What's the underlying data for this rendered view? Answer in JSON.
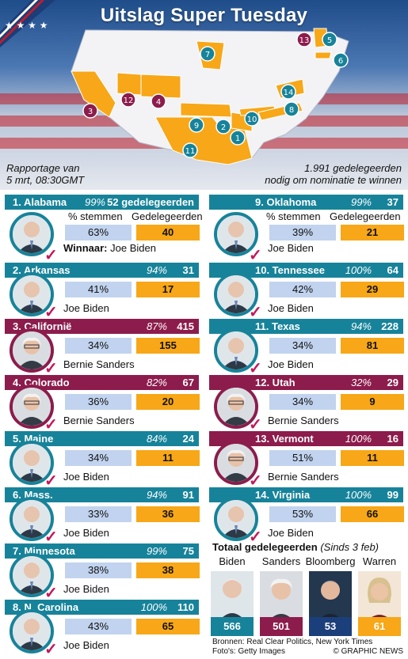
{
  "title": "Uitslag Super Tuesday",
  "report_note": {
    "line1": "Rapportage van",
    "line2": "5 mrt, 08:30GMT"
  },
  "threshold_note": {
    "line1": "1.991 gedelegeerden",
    "line2": "nodig om nominatie te winnen"
  },
  "column_headers": {
    "votes": "% stemmen",
    "delegates": "Gedelegeerden"
  },
  "winner_prefix": "Winnaar:",
  "colors": {
    "biden": "#17839a",
    "sanders": "#8c1c4c",
    "delegates": "#f7a717",
    "votes": "#c1d3ee",
    "map_won": "#f7a717"
  },
  "map_markers": [
    {
      "n": "1",
      "winner": "biden"
    },
    {
      "n": "2",
      "winner": "biden"
    },
    {
      "n": "3",
      "winner": "sanders"
    },
    {
      "n": "4",
      "winner": "sanders"
    },
    {
      "n": "5",
      "winner": "biden"
    },
    {
      "n": "6",
      "winner": "biden"
    },
    {
      "n": "7",
      "winner": "biden"
    },
    {
      "n": "8",
      "winner": "biden"
    },
    {
      "n": "9",
      "winner": "biden"
    },
    {
      "n": "10",
      "winner": "biden"
    },
    {
      "n": "11",
      "winner": "biden"
    },
    {
      "n": "12",
      "winner": "sanders"
    },
    {
      "n": "13",
      "winner": "sanders"
    },
    {
      "n": "14",
      "winner": "biden"
    }
  ],
  "states": [
    {
      "name": "1. Alabama",
      "reported": "99%",
      "delegates": "52 gedelegeerden",
      "vote_pct": "63%",
      "won": "40",
      "winner": "Joe Biden",
      "party_color": "biden"
    },
    {
      "name": "2. Arkansas",
      "reported": "94%",
      "delegates": "31",
      "vote_pct": "41%",
      "won": "17",
      "winner": "Joe Biden",
      "party_color": "biden"
    },
    {
      "name": "3. Californië",
      "reported": "87%",
      "delegates": "415",
      "vote_pct": "34%",
      "won": "155",
      "winner": "Bernie Sanders",
      "party_color": "sanders"
    },
    {
      "name": "4. Colorado",
      "reported": "82%",
      "delegates": "67",
      "vote_pct": "36%",
      "won": "20",
      "winner": "Bernie Sanders",
      "party_color": "sanders"
    },
    {
      "name": "5. Maine",
      "reported": "84%",
      "delegates": "24",
      "vote_pct": "34%",
      "won": "11",
      "winner": "Joe Biden",
      "party_color": "biden"
    },
    {
      "name": "6. Mass.",
      "reported": "94%",
      "delegates": "91",
      "vote_pct": "33%",
      "won": "36",
      "winner": "Joe Biden",
      "party_color": "biden"
    },
    {
      "name": "7. Minnesota",
      "reported": "99%",
      "delegates": "75",
      "vote_pct": "38%",
      "won": "38",
      "winner": "Joe Biden",
      "party_color": "biden"
    },
    {
      "name": "8. N. Carolina",
      "reported": "100%",
      "delegates": "110",
      "vote_pct": "43%",
      "won": "65",
      "winner": "Joe Biden",
      "party_color": "biden"
    },
    {
      "name": "9. Oklahoma",
      "reported": "99%",
      "delegates": "37",
      "vote_pct": "39%",
      "won": "21",
      "winner": "Joe Biden",
      "party_color": "biden"
    },
    {
      "name": "10. Tennessee",
      "reported": "100%",
      "delegates": "64",
      "vote_pct": "42%",
      "won": "29",
      "winner": "Joe Biden",
      "party_color": "biden"
    },
    {
      "name": "11. Texas",
      "reported": "94%",
      "delegates": "228",
      "vote_pct": "34%",
      "won": "81",
      "winner": "Joe Biden",
      "party_color": "biden"
    },
    {
      "name": "12. Utah",
      "reported": "32%",
      "delegates": "29",
      "vote_pct": "34%",
      "won": "9",
      "winner": "Bernie Sanders",
      "party_color": "sanders"
    },
    {
      "name": "13. Vermont",
      "reported": "100%",
      "delegates": "16",
      "vote_pct": "51%",
      "won": "11",
      "winner": "Bernie Sanders",
      "party_color": "sanders"
    },
    {
      "name": "14. Virginia",
      "reported": "100%",
      "delegates": "99",
      "vote_pct": "53%",
      "won": "66",
      "winner": "Joe Biden",
      "party_color": "biden"
    }
  ],
  "totals": {
    "title": "Totaal gedelegeerden",
    "since": "(Sinds 3 feb)",
    "candidates": [
      {
        "name": "Biden",
        "total": "566",
        "color": "#17839a"
      },
      {
        "name": "Sanders",
        "total": "501",
        "color": "#8c1c4c"
      },
      {
        "name": "Bloomberg",
        "total": "53",
        "color": "#1b3f7a"
      },
      {
        "name": "Warren",
        "total": "61",
        "color": "#f7a717"
      }
    ]
  },
  "sources": {
    "line1": "Bronnen: Real Clear Politics, New York Times",
    "line2": "Foto's: Getty Images"
  },
  "copyright": "© GRAPHIC NEWS"
}
